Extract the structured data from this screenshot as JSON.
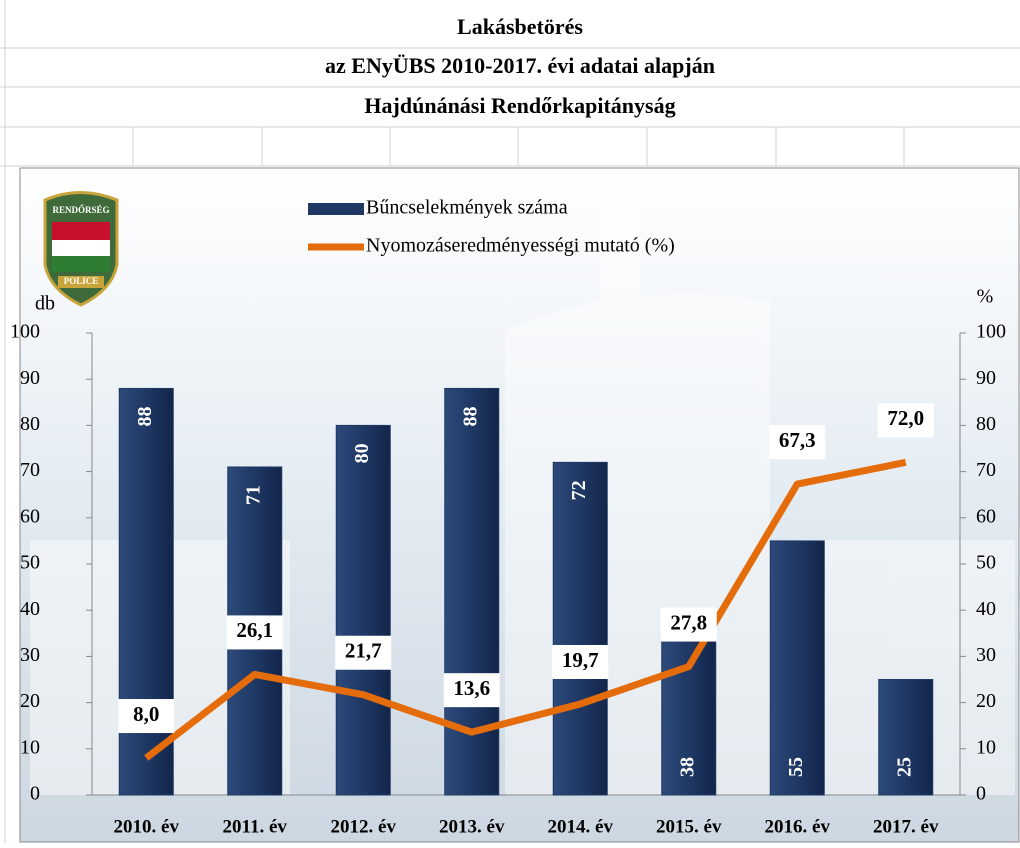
{
  "header": {
    "titles": [
      "Lakásbetörés",
      "az ENyÜBS 2010-2017. évi adatai alapján",
      "Hajdúnánási Rendőrkapitányság"
    ]
  },
  "logo": {
    "top": "RENDŐRSÉG",
    "bottom": "POLICE"
  },
  "chart_data": {
    "type": "bar-line",
    "categories": [
      "2010. év",
      "2011. év",
      "2012. év",
      "2013. év",
      "2014. év",
      "2015. év",
      "2016. év",
      "2017. év"
    ],
    "y_label": "db",
    "y2_label": "%",
    "ylim": [
      0,
      100
    ],
    "yticks": [
      0,
      10,
      20,
      30,
      40,
      50,
      60,
      70,
      80,
      90,
      100
    ],
    "y2lim": [
      0,
      100
    ],
    "y2ticks": [
      0,
      10,
      20,
      30,
      40,
      50,
      60,
      70,
      80,
      90,
      100
    ],
    "series": [
      {
        "name": "Bűncselekmények száma",
        "type": "bar",
        "color": "#1f3864",
        "values": [
          88,
          71,
          80,
          88,
          72,
          38,
          55,
          25
        ]
      },
      {
        "name": "Nyomozáseredményességi mutató (%)",
        "type": "line",
        "axis": "y2",
        "color": "#e46c0a",
        "values": [
          8.0,
          26.1,
          21.7,
          13.6,
          19.7,
          27.8,
          67.3,
          72.0
        ],
        "value_labels": [
          "8,0",
          "26,1",
          "21,7",
          "13,6",
          "19,7",
          "27,8",
          "67,3",
          "72,0"
        ]
      }
    ]
  }
}
